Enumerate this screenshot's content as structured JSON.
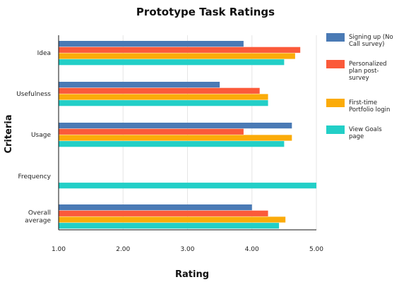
{
  "chart_data": {
    "type": "bar",
    "orientation": "horizontal",
    "title": "Prototype Task Ratings",
    "xlabel": "Rating",
    "ylabel": "Criteria",
    "xlim": [
      1.0,
      5.0
    ],
    "xticks": [
      "1.00",
      "2.00",
      "3.00",
      "4.00",
      "5.00"
    ],
    "categories": [
      {
        "lines": [
          "Idea"
        ]
      },
      {
        "lines": [
          "Usefulness"
        ]
      },
      {
        "lines": [
          "Usage"
        ]
      },
      {
        "lines": [
          "Frequency"
        ]
      },
      {
        "lines": [
          "Overall",
          "average"
        ]
      }
    ],
    "series": [
      {
        "name_lines": [
          "Signing up (No",
          "Call survey)"
        ],
        "color": "#4a7ab5",
        "values": [
          3.87,
          3.5,
          4.62,
          null,
          4.0
        ]
      },
      {
        "name_lines": [
          "Personalized",
          "plan post-",
          "survey"
        ],
        "color": "#fb5a3a",
        "values": [
          4.75,
          4.12,
          3.87,
          null,
          4.25
        ]
      },
      {
        "name_lines": [
          "First-time",
          "Portfolio login"
        ],
        "color": "#fbab09",
        "values": [
          4.67,
          4.25,
          4.62,
          null,
          4.52
        ]
      },
      {
        "name_lines": [
          "View Goals",
          "page"
        ],
        "color": "#22cfc7",
        "values": [
          4.5,
          4.25,
          4.5,
          5.0,
          4.42
        ]
      }
    ],
    "grid": true,
    "legend": "right"
  }
}
